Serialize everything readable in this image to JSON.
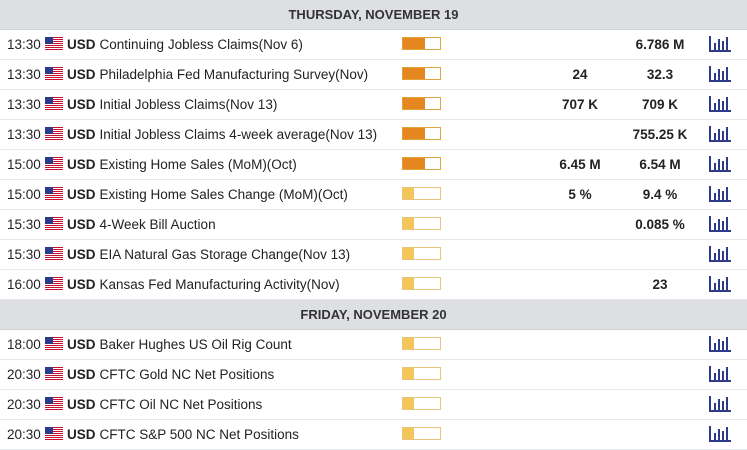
{
  "days": [
    {
      "title": "THURSDAY, NOVEMBER 19",
      "events": [
        {
          "time": "13:30",
          "currency": "USD",
          "name": "Continuing Jobless Claims(Nov 6)",
          "importance": "high",
          "forecast": "",
          "previous": "6.786 M"
        },
        {
          "time": "13:30",
          "currency": "USD",
          "name": "Philadelphia Fed Manufacturing Survey(Nov)",
          "importance": "high",
          "forecast": "24",
          "previous": "32.3"
        },
        {
          "time": "13:30",
          "currency": "USD",
          "name": "Initial Jobless Claims(Nov 13)",
          "importance": "high",
          "forecast": "707 K",
          "previous": "709 K"
        },
        {
          "time": "13:30",
          "currency": "USD",
          "name": "Initial Jobless Claims 4-week average(Nov 13)",
          "importance": "high",
          "forecast": "",
          "previous": "755.25 K"
        },
        {
          "time": "15:00",
          "currency": "USD",
          "name": "Existing Home Sales (MoM)(Oct)",
          "importance": "high",
          "forecast": "6.45 M",
          "previous": "6.54 M"
        },
        {
          "time": "15:00",
          "currency": "USD",
          "name": "Existing Home Sales Change (MoM)(Oct)",
          "importance": "low",
          "forecast": "5 %",
          "previous": "9.4 %"
        },
        {
          "time": "15:30",
          "currency": "USD",
          "name": "4-Week Bill Auction",
          "importance": "low",
          "forecast": "",
          "previous": "0.085 %"
        },
        {
          "time": "15:30",
          "currency": "USD",
          "name": "EIA Natural Gas Storage Change(Nov 13)",
          "importance": "low",
          "forecast": "",
          "previous": ""
        },
        {
          "time": "16:00",
          "currency": "USD",
          "name": "Kansas Fed Manufacturing Activity(Nov)",
          "importance": "low",
          "forecast": "",
          "previous": "23"
        }
      ]
    },
    {
      "title": "FRIDAY, NOVEMBER 20",
      "events": [
        {
          "time": "18:00",
          "currency": "USD",
          "name": "Baker Hughes US Oil Rig Count",
          "importance": "low",
          "forecast": "",
          "previous": ""
        },
        {
          "time": "20:30",
          "currency": "USD",
          "name": "CFTC Gold NC Net Positions",
          "importance": "low",
          "forecast": "",
          "previous": ""
        },
        {
          "time": "20:30",
          "currency": "USD",
          "name": "CFTC Oil NC Net Positions",
          "importance": "low",
          "forecast": "",
          "previous": ""
        },
        {
          "time": "20:30",
          "currency": "USD",
          "name": "CFTC S&P 500 NC Net Positions",
          "importance": "low",
          "forecast": "",
          "previous": ""
        }
      ]
    }
  ],
  "icons": {
    "flag": "us-flag-icon",
    "chart": "bar-chart-icon"
  },
  "colors": {
    "header_bg": "#dddfe3",
    "high_importance": "#e5861f",
    "low_importance": "#f4c65a",
    "chart_icon": "#2d3a8c"
  }
}
